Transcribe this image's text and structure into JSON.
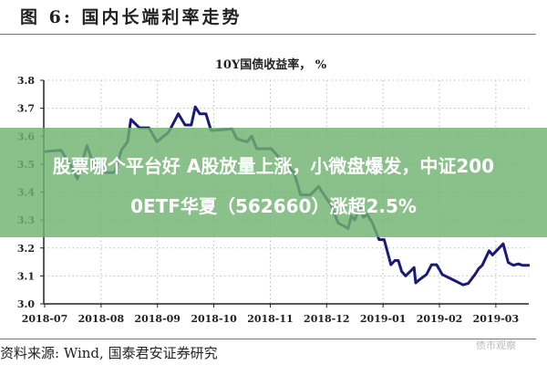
{
  "figure_title": "图 6:  国内长端利率走势",
  "source": "资料来源:  Wind,  国泰君安证券研究",
  "watermark": "债市观察",
  "banner": {
    "line1": "股票哪个平台好 A股放量上涨，小微盘爆发，中证200",
    "line2": "0ETF华夏（562660）涨超2.5%"
  },
  "chart_data": {
    "type": "line",
    "title": "10Y国债收益率， %",
    "xlabel": "",
    "ylabel": "",
    "ylim": [
      3.0,
      3.8
    ],
    "yticks": [
      "3.0",
      "3.1",
      "3.2",
      "3.3",
      "3.4",
      "3.5",
      "3.6",
      "3.7",
      "3.8"
    ],
    "xticks": [
      "2018-07",
      "2018-08",
      "2018-09",
      "2018-10",
      "2018-11",
      "2018-12",
      "2019-01",
      "2019-02",
      "2019-03"
    ],
    "x_unit": "months since 2018-07",
    "xlim": [
      0,
      8.6
    ],
    "grid": true,
    "color": "#1a1a7a",
    "series": [
      {
        "name": "10Y国债收益率",
        "x": [
          0,
          0.29,
          0.46,
          0.58,
          0.75,
          0.87,
          1.07,
          1.24,
          1.36,
          1.47,
          1.53,
          1.68,
          1.85,
          1.99,
          2.2,
          2.37,
          2.49,
          2.6,
          2.67,
          2.75,
          2.86,
          2.95,
          3.32,
          3.41,
          3.59,
          3.67,
          3.76,
          4.02,
          4.13,
          4.42,
          4.54,
          4.71,
          4.86,
          4.92,
          5.09,
          5.2,
          5.38,
          5.44,
          5.5,
          5.59,
          5.65,
          5.72,
          5.81,
          5.93,
          6.02,
          6.14,
          6.21,
          6.27,
          6.33,
          6.4,
          6.55,
          6.58,
          6.64,
          6.77,
          6.86,
          6.95,
          7.05,
          7.2,
          7.42,
          7.51,
          7.63,
          7.7,
          7.76,
          7.88,
          7.94,
          8.13,
          8.22,
          8.31,
          8.4,
          8.47,
          8.6
        ],
        "values": [
          3.545,
          3.55,
          3.495,
          3.447,
          3.566,
          3.5,
          3.47,
          3.47,
          3.55,
          3.58,
          3.66,
          3.63,
          3.63,
          3.58,
          3.615,
          3.68,
          3.64,
          3.64,
          3.705,
          3.68,
          3.68,
          3.62,
          3.626,
          3.59,
          3.58,
          3.6,
          3.555,
          3.555,
          3.53,
          3.47,
          3.39,
          3.39,
          3.42,
          3.4,
          3.35,
          3.29,
          3.27,
          3.315,
          3.3,
          3.35,
          3.31,
          3.32,
          3.29,
          3.23,
          3.23,
          3.14,
          3.155,
          3.155,
          3.116,
          3.1,
          3.13,
          3.075,
          3.086,
          3.105,
          3.14,
          3.14,
          3.105,
          3.09,
          3.068,
          3.073,
          3.105,
          3.127,
          3.138,
          3.19,
          3.175,
          3.215,
          3.148,
          3.138,
          3.143,
          3.138,
          3.138
        ]
      }
    ]
  }
}
